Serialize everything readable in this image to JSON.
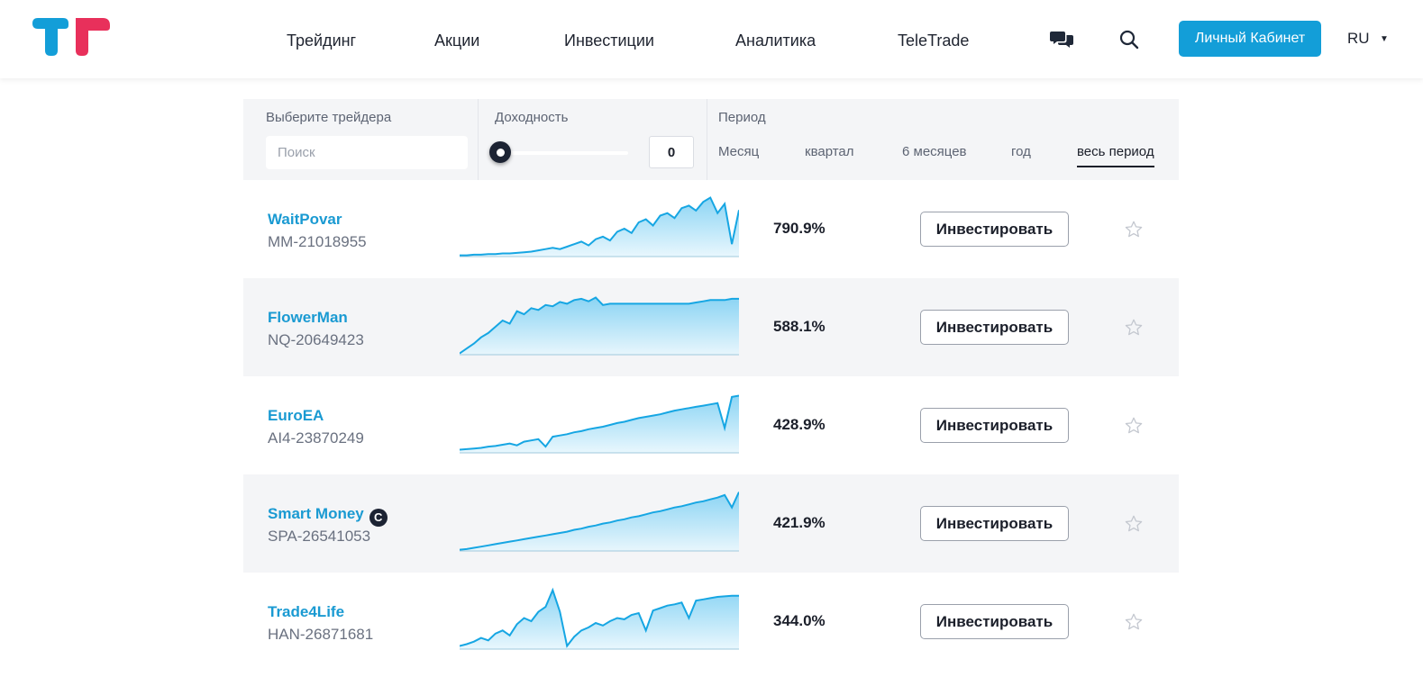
{
  "header": {
    "nav": [
      {
        "label": "Трейдинг",
        "name": "nav-trading"
      },
      {
        "label": "Акции",
        "name": "nav-stocks"
      },
      {
        "label": "Инвестиции",
        "name": "nav-investments"
      },
      {
        "label": "Аналитика",
        "name": "nav-analytics"
      },
      {
        "label": "TeleTrade",
        "name": "nav-teletrade"
      }
    ],
    "chat_icon": "chat-icon",
    "search_icon": "search-icon",
    "cabinet_label": "Личный Кабинет",
    "language": "RU",
    "brand_colors": {
      "blue": "#139ed8",
      "red": "#e8305b"
    }
  },
  "filters": {
    "trader_label": "Выберите трейдера",
    "search_placeholder": "Поиск",
    "profit_label": "Доходность",
    "profit_value": "0",
    "period_label": "Период",
    "periods": [
      {
        "label": "Месяц",
        "active": false
      },
      {
        "label": "квартал",
        "active": false
      },
      {
        "label": "6 месяцев",
        "active": false
      },
      {
        "label": "год",
        "active": false
      },
      {
        "label": "весь период",
        "active": true
      }
    ]
  },
  "traders": [
    {
      "name": "WaitPovar",
      "id": "MM-21018955",
      "return": "790.9%",
      "badge": "",
      "invest_label": "Инвестировать",
      "favorite": false
    },
    {
      "name": "FlowerMan",
      "id": "NQ-20649423",
      "return": "588.1%",
      "badge": "",
      "invest_label": "Инвестировать",
      "favorite": false
    },
    {
      "name": "EuroEA",
      "id": "AI4-23870249",
      "return": "428.9%",
      "badge": "",
      "invest_label": "Инвестировать",
      "favorite": false
    },
    {
      "name": "Smart Money",
      "id": "SPA-26541053",
      "return": "421.9%",
      "badge": "C",
      "invest_label": "Инвестировать",
      "favorite": false
    },
    {
      "name": "Trade4Life",
      "id": "HAN-26871681",
      "return": "344.0%",
      "badge": "",
      "invest_label": "Инвестировать",
      "favorite": false
    }
  ]
}
